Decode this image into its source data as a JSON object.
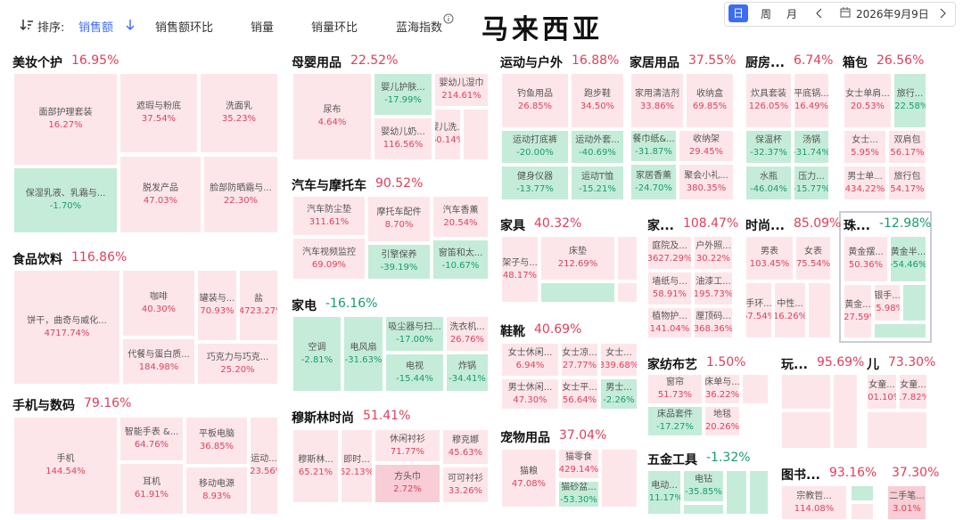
{
  "toolbar": {
    "sort_label": "排序:",
    "options": [
      "销售额",
      "销售额环比",
      "销量",
      "销量环比",
      "蓝海指数"
    ],
    "active": 0
  },
  "title": "马来西亚",
  "date_controls": {
    "modes": [
      "日",
      "周",
      "月"
    ],
    "active_mode": 0,
    "date": "2026年9月9日"
  },
  "groups": [
    {
      "name": "美妆个护",
      "change": "16.95%",
      "tiles": [
        {
          "label": "面部护理套装",
          "change": "16.27%"
        },
        {
          "label": "保湿乳液、乳霜与...",
          "change": "-1.70%"
        },
        {
          "label": "遮瑕与粉底",
          "change": "37.54%"
        },
        {
          "label": "洗面乳",
          "change": "35.23%"
        },
        {
          "label": "脱发产品",
          "change": "47.03%"
        },
        {
          "label": "脸部防晒霜与...",
          "change": "22.30%"
        }
      ]
    },
    {
      "name": "食品饮料",
      "change": "116.86%",
      "tiles": [
        {
          "label": "饼干，曲奇与威化...",
          "change": "4717.74%"
        },
        {
          "label": "咖啡",
          "change": "40.30%"
        },
        {
          "label": "罐装与...",
          "change": "70.93%"
        },
        {
          "label": "盐",
          "change": "14723.27%"
        },
        {
          "label": "代餐与蛋白质...",
          "change": "184.98%"
        },
        {
          "label": "巧克力与巧克...",
          "change": "25.20%"
        }
      ]
    },
    {
      "name": "手机与数码",
      "change": "79.16%",
      "tiles": [
        {
          "label": "手机",
          "change": "144.54%"
        },
        {
          "label": "智能手表 &...",
          "change": "64.76%"
        },
        {
          "label": "耳机",
          "change": "61.91%"
        },
        {
          "label": "平板电脑",
          "change": "36.85%"
        },
        {
          "label": "移动电源",
          "change": "8.93%"
        },
        {
          "label": "运动...",
          "change": "123.56%"
        }
      ]
    },
    {
      "name": "母婴用品",
      "change": "22.52%",
      "tiles": [
        {
          "label": "尿布",
          "change": "4.64%"
        },
        {
          "label": "婴儿护肤...",
          "change": "-17.99%"
        },
        {
          "label": "婴幼儿奶...",
          "change": "116.56%"
        },
        {
          "label": "婴幼儿湿巾",
          "change": "214.61%"
        },
        {
          "label": "婴儿洗...",
          "change": "60.14%"
        }
      ]
    },
    {
      "name": "汽车与摩托车",
      "change": "90.52%",
      "tiles": [
        {
          "label": "汽车防尘垫",
          "change": "311.61%"
        },
        {
          "label": "汽车视频监控",
          "change": "69.09%"
        },
        {
          "label": "摩托车配件",
          "change": "8.70%"
        },
        {
          "label": "引擎保养",
          "change": "-39.19%"
        },
        {
          "label": "汽车香薰",
          "change": "20.54%"
        },
        {
          "label": "窗笛和太...",
          "change": "-10.67%"
        }
      ]
    },
    {
      "name": "家电",
      "change": "-16.16%",
      "tiles": [
        {
          "label": "空调",
          "change": "-2.81%"
        },
        {
          "label": "电风扇",
          "change": "-31.63%"
        },
        {
          "label": "吸尘器与扫...",
          "change": "-17.00%"
        },
        {
          "label": "电视",
          "change": "-15.44%"
        },
        {
          "label": "洗衣机...",
          "change": "26.76%"
        },
        {
          "label": "炸锅",
          "change": "-34.41%"
        }
      ]
    },
    {
      "name": "穆斯林时尚",
      "change": "51.41%",
      "tiles": [
        {
          "label": "穆斯林...",
          "change": "65.21%"
        },
        {
          "label": "即时...",
          "change": "52.13%"
        },
        {
          "label": "休闲衬衫",
          "change": "71.77%"
        },
        {
          "label": "方头巾",
          "change": "2.72%"
        },
        {
          "label": "穆克娜",
          "change": "45.63%"
        },
        {
          "label": "可可衬衫",
          "change": "33.26%"
        }
      ]
    },
    {
      "name": "运动与户外",
      "change": "16.88%",
      "tiles": [
        {
          "label": "钓鱼用品",
          "change": "26.85%"
        },
        {
          "label": "跑步鞋",
          "change": "34.50%"
        },
        {
          "label": "运动打底裤",
          "change": "-20.00%"
        },
        {
          "label": "运动外套...",
          "change": "-40.69%"
        },
        {
          "label": "健身仪器",
          "change": "-13.77%"
        },
        {
          "label": "运动T恤",
          "change": "-15.21%"
        }
      ]
    },
    {
      "name": "家具",
      "change": "40.32%",
      "tiles": [
        {
          "label": "架子与...",
          "change": "48.17%"
        },
        {
          "label": "床垫",
          "change": "212.69%"
        }
      ]
    },
    {
      "name": "鞋靴",
      "change": "40.69%",
      "tiles": [
        {
          "label": "女士休闲...",
          "change": "6.94%"
        },
        {
          "label": "女士凉...",
          "change": "27.77%"
        },
        {
          "label": "女士...",
          "change": "339.68%"
        },
        {
          "label": "男士休闲...",
          "change": "47.30%"
        },
        {
          "label": "女士平...",
          "change": "56.64%"
        },
        {
          "label": "男士...",
          "change": "-2.26%"
        }
      ]
    },
    {
      "name": "宠物用品",
      "change": "37.04%",
      "tiles": [
        {
          "label": "猫粮",
          "change": "47.08%"
        },
        {
          "label": "猫零食",
          "change": "429.14%"
        },
        {
          "label": "猫砂盆...",
          "change": "-53.30%"
        }
      ]
    },
    {
      "name": "家居用品",
      "change": "37.55%",
      "tiles": [
        {
          "label": "家用清洁剂",
          "change": "33.86%"
        },
        {
          "label": "收纳盒",
          "change": "69.85%"
        },
        {
          "label": "餐巾纸&...",
          "change": "-31.87%"
        },
        {
          "label": "收纳架",
          "change": "29.45%"
        },
        {
          "label": "家居香薰",
          "change": "-24.70%"
        },
        {
          "label": "聚会小礼...",
          "change": "380.35%"
        }
      ]
    },
    {
      "name": "家...",
      "change": "108.47%",
      "tiles": [
        {
          "label": "庭院及...",
          "change": "3627.29%"
        },
        {
          "label": "户外照...",
          "change": "30.22%"
        },
        {
          "label": "墙纸与...",
          "change": "58.91%"
        },
        {
          "label": "油漆工...",
          "change": "195.73%"
        },
        {
          "label": "植物护...",
          "change": "141.04%"
        },
        {
          "label": "厘顶码...",
          "change": "368.36%"
        }
      ]
    },
    {
      "name": "家纺布艺",
      "change": "1.50%",
      "tiles": [
        {
          "label": "窗帘",
          "change": "51.73%"
        },
        {
          "label": "床单与...",
          "change": "36.22%"
        },
        {
          "label": "床品套件",
          "change": "-17.27%"
        },
        {
          "label": "地毯",
          "change": "20.26%"
        }
      ]
    },
    {
      "name": "五金工具",
      "change": "-1.32%",
      "tiles": [
        {
          "label": "电动...",
          "change": "-11.17%"
        },
        {
          "label": "电钻",
          "change": "-35.85%"
        }
      ]
    },
    {
      "name": "厨房...",
      "change": "6.74%",
      "tiles": [
        {
          "label": "炊具套装",
          "change": "126.05%"
        },
        {
          "label": "平底锅...",
          "change": "16.49%"
        },
        {
          "label": "保温杯",
          "change": "-32.37%"
        },
        {
          "label": "汤锅",
          "change": "-31.74%"
        },
        {
          "label": "水瓶",
          "change": "-46.04%"
        },
        {
          "label": "压力...",
          "change": "-15.77%"
        }
      ]
    },
    {
      "name": "箱包",
      "change": "26.56%",
      "tiles": [
        {
          "label": "女士单肩...",
          "change": "20.53%"
        },
        {
          "label": "旅行...",
          "change": "-22.58%"
        },
        {
          "label": "女士...",
          "change": "5.95%"
        },
        {
          "label": "双肩包",
          "change": "56.17%"
        },
        {
          "label": "男士单...",
          "change": "434.22%"
        },
        {
          "label": "旅行包",
          "change": "54.17%"
        }
      ]
    },
    {
      "name": "时尚...",
      "change": "85.09%",
      "tiles": [
        {
          "label": "男表",
          "change": "103.45%"
        },
        {
          "label": "女表",
          "change": "75.54%"
        },
        {
          "label": "手环...",
          "change": "67.54%"
        },
        {
          "label": "中性...",
          "change": "16.26%"
        }
      ]
    },
    {
      "name": "珠...",
      "change": "-12.98%",
      "tiles": [
        {
          "label": "黄金摆...",
          "change": "50.36%"
        },
        {
          "label": "黄金半...",
          "change": "-54.46%"
        },
        {
          "label": "黄金...",
          "change": "227.59%"
        },
        {
          "label": "银手...",
          "change": "25.98%"
        }
      ]
    },
    {
      "name": "玩...",
      "change": "95.69%",
      "tiles": []
    },
    {
      "name": "儿",
      "change": "73.30%",
      "tiles": [
        {
          "label": "女童...",
          "change": "101.10%"
        },
        {
          "label": "女童...",
          "change": "17.82%"
        }
      ]
    },
    {
      "name": "图书...",
      "change": "93.16%",
      "tiles": [
        {
          "label": "宗教哲...",
          "change": "114.08%"
        }
      ]
    },
    {
      "change": "37.30%",
      "tiles": [
        {
          "label": "二手笔...",
          "change": "3.01%"
        }
      ]
    }
  ]
}
